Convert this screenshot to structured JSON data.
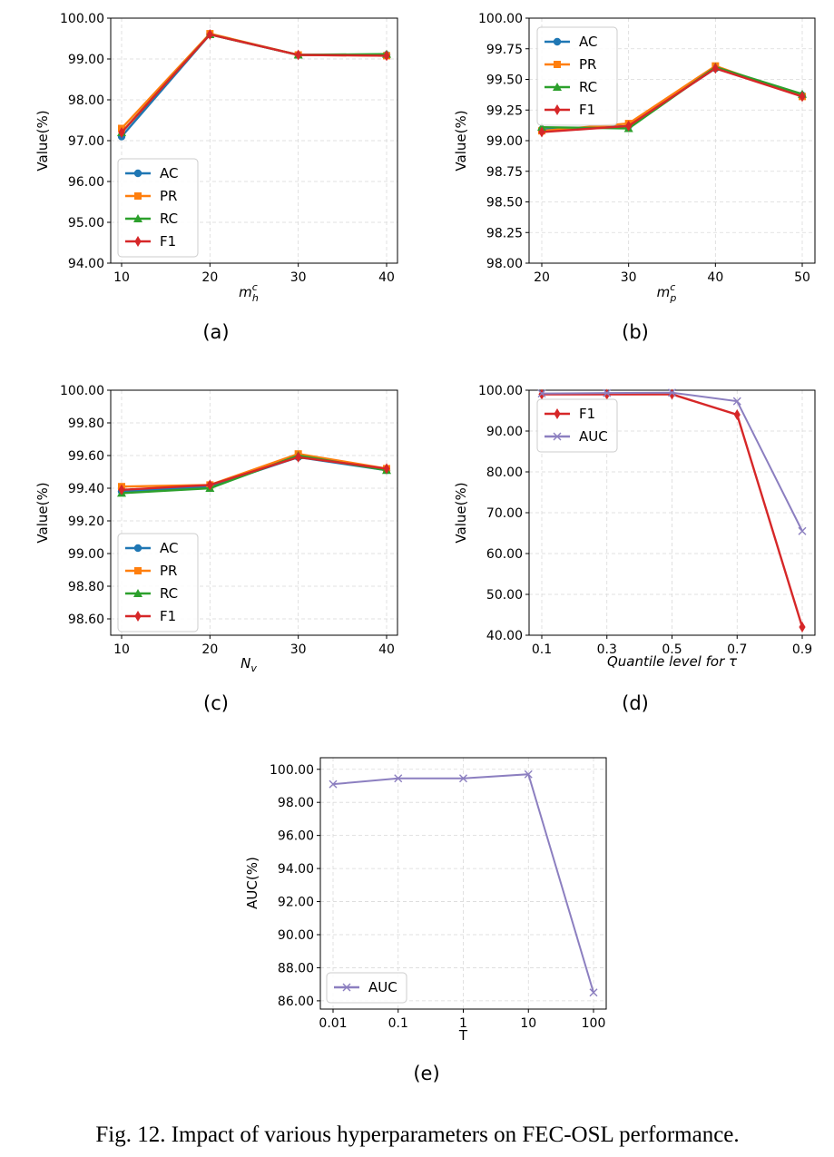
{
  "caption": "Fig. 12.  Impact of various hyperparameters on FEC-OSL performance.",
  "colors": {
    "AC": "#1f77b4",
    "PR": "#ff7f0e",
    "RC": "#2ca02c",
    "F1": "#d62728",
    "AUC": "#8c7fc0"
  },
  "chart_data": [
    {
      "id": "a",
      "type": "line",
      "subtitle": "(a)",
      "xlabel_base": "m",
      "xlabel_sub": "h",
      "xlabel_sup": "c",
      "ylabel": "Value(%)",
      "x": [
        10,
        20,
        30,
        40
      ],
      "x_tick_labels": [
        "10",
        "20",
        "30",
        "40"
      ],
      "ylim": [
        94,
        100
      ],
      "y_ticks": [
        94,
        95,
        96,
        97,
        98,
        99,
        100
      ],
      "y_tick_labels": [
        "94.00",
        "95.00",
        "96.00",
        "97.00",
        "98.00",
        "99.00",
        "100.00"
      ],
      "legend_loc": "lower-left",
      "series": [
        {
          "name": "AC",
          "marker": "circle",
          "values": [
            97.1,
            99.6,
            99.1,
            99.1
          ]
        },
        {
          "name": "PR",
          "marker": "square",
          "values": [
            97.3,
            99.62,
            99.1,
            99.08
          ]
        },
        {
          "name": "RC",
          "marker": "triangle",
          "values": [
            97.2,
            99.6,
            99.1,
            99.12
          ]
        },
        {
          "name": "F1",
          "marker": "diamond",
          "values": [
            97.2,
            99.6,
            99.1,
            99.08
          ]
        }
      ]
    },
    {
      "id": "b",
      "type": "line",
      "subtitle": "(b)",
      "xlabel_base": "m",
      "xlabel_sub": "p",
      "xlabel_sup": "c",
      "ylabel": "Value(%)",
      "x": [
        20,
        30,
        40,
        50
      ],
      "x_tick_labels": [
        "20",
        "30",
        "40",
        "50"
      ],
      "ylim": [
        98,
        100
      ],
      "y_ticks": [
        98,
        98.25,
        98.5,
        98.75,
        99,
        99.25,
        99.5,
        99.75,
        100
      ],
      "y_tick_labels": [
        "98.00",
        "98.25",
        "98.50",
        "98.75",
        "99.00",
        "99.25",
        "99.50",
        "99.75",
        "100.00"
      ],
      "legend_loc": "upper-left",
      "series": [
        {
          "name": "AC",
          "marker": "circle",
          "values": [
            99.09,
            99.12,
            99.59,
            99.37
          ]
        },
        {
          "name": "PR",
          "marker": "square",
          "values": [
            99.08,
            99.14,
            99.61,
            99.36
          ]
        },
        {
          "name": "RC",
          "marker": "triangle",
          "values": [
            99.11,
            99.1,
            99.6,
            99.38
          ]
        },
        {
          "name": "F1",
          "marker": "diamond",
          "values": [
            99.07,
            99.12,
            99.59,
            99.36
          ]
        }
      ]
    },
    {
      "id": "c",
      "type": "line",
      "subtitle": "(c)",
      "xlabel_base": "N",
      "xlabel_sub": "v",
      "xlabel_sup": "",
      "ylabel": "Value(%)",
      "x": [
        10,
        20,
        30,
        40
      ],
      "x_tick_labels": [
        "10",
        "20",
        "30",
        "40"
      ],
      "ylim": [
        98.5,
        100
      ],
      "y_ticks": [
        98.6,
        98.8,
        99.0,
        99.2,
        99.4,
        99.6,
        99.8,
        100.0
      ],
      "y_tick_labels": [
        "98.60",
        "98.80",
        "99.00",
        "99.20",
        "99.40",
        "99.60",
        "99.80",
        "100.00"
      ],
      "legend_loc": "lower-left",
      "series": [
        {
          "name": "AC",
          "marker": "circle",
          "values": [
            99.38,
            99.41,
            99.59,
            99.51
          ]
        },
        {
          "name": "PR",
          "marker": "square",
          "values": [
            99.41,
            99.42,
            99.61,
            99.52
          ]
        },
        {
          "name": "RC",
          "marker": "triangle",
          "values": [
            99.37,
            99.4,
            99.6,
            99.51
          ]
        },
        {
          "name": "F1",
          "marker": "diamond",
          "values": [
            99.39,
            99.42,
            99.59,
            99.52
          ]
        }
      ]
    },
    {
      "id": "d",
      "type": "line",
      "subtitle": "(d)",
      "xlabel_text": "Quantile level for τ",
      "ylabel": "Value(%)",
      "x": [
        0.1,
        0.3,
        0.5,
        0.7,
        0.9
      ],
      "x_tick_labels": [
        "0.1",
        "0.3",
        "0.5",
        "0.7",
        "0.9"
      ],
      "ylim": [
        40,
        100
      ],
      "y_ticks": [
        40,
        50,
        60,
        70,
        80,
        90,
        100
      ],
      "y_tick_labels": [
        "40.00",
        "50.00",
        "60.00",
        "70.00",
        "80.00",
        "90.00",
        "100.00"
      ],
      "legend_loc": "upper-left",
      "series": [
        {
          "name": "F1",
          "marker": "diamond",
          "values": [
            99.0,
            99.0,
            99.0,
            94.0,
            42.0
          ]
        },
        {
          "name": "AUC",
          "marker": "x",
          "values": [
            99.2,
            99.3,
            99.4,
            97.3,
            65.5
          ]
        }
      ]
    },
    {
      "id": "e",
      "type": "line",
      "subtitle": "(e)",
      "xlabel_text": "T",
      "ylabel": "AUC(%)",
      "x": [
        0.01,
        0.1,
        1,
        10,
        100
      ],
      "x_tick_labels": [
        "0.01",
        "0.1",
        "1",
        "10",
        "100"
      ],
      "ylim": [
        85.5,
        100.7
      ],
      "y_ticks": [
        86,
        88,
        90,
        92,
        94,
        96,
        98,
        100
      ],
      "y_tick_labels": [
        "86.00",
        "88.00",
        "90.00",
        "92.00",
        "94.00",
        "96.00",
        "98.00",
        "100.00"
      ],
      "legend_loc": "lower-left",
      "series": [
        {
          "name": "AUC",
          "marker": "x",
          "values": [
            99.1,
            99.45,
            99.45,
            99.7,
            86.5
          ]
        }
      ]
    }
  ]
}
